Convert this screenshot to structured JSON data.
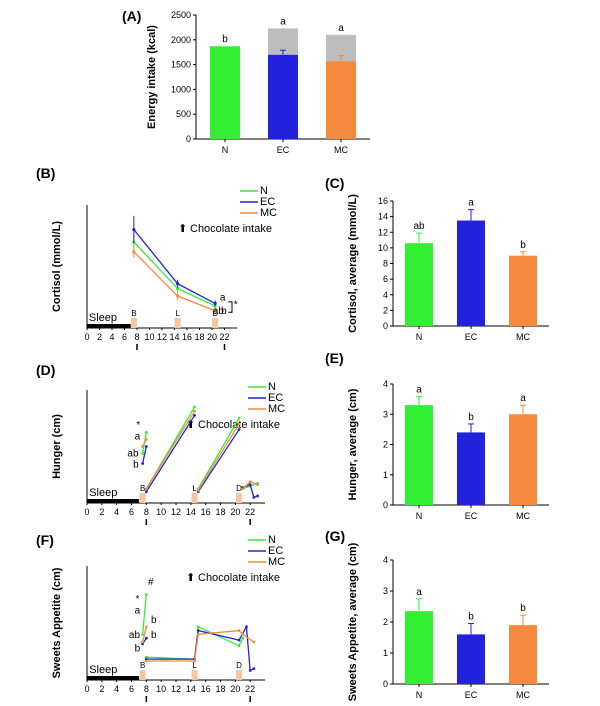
{
  "colors": {
    "N": "#33ee33",
    "EC": "#2222dd",
    "MC": "#f58a3c",
    "gray": "#bdbdbd",
    "meal_box": "#f7c6a0"
  },
  "common": {
    "legend": [
      "N",
      "EC",
      "MC"
    ],
    "intake_note": "Chocolate intake",
    "sleep_label": "Sleep",
    "meal_markers": [
      "B",
      "L",
      "D"
    ],
    "time_ticks": [
      "0",
      "2",
      "4",
      "6",
      "8",
      "10",
      "12",
      "14",
      "16",
      "18",
      "20",
      "22"
    ],
    "time_ticks_b": [
      "0",
      "2",
      "4",
      "6",
      "8",
      "10",
      "12",
      "14",
      "16",
      "18",
      "20",
      "22"
    ]
  },
  "chart_data": [
    {
      "panel": "(A)",
      "type": "bar",
      "stacked": true,
      "ylabel": "Energy intake (kcal)",
      "ylim": [
        0,
        2500
      ],
      "yticks": [
        "0",
        "500",
        "1000",
        "1500",
        "2000",
        "2500"
      ],
      "categories": [
        "N",
        "EC",
        "MC"
      ],
      "series": [
        {
          "values": [
            1870,
            1700,
            1570
          ],
          "errors": [
            0,
            90,
            110
          ]
        },
        {
          "values": [
            0,
            530,
            530
          ]
        }
      ],
      "letters": [
        "b",
        "a",
        "a"
      ]
    },
    {
      "panel": "(B)",
      "type": "line",
      "ylabel": "Cortisol (mmol/L)",
      "ylim": [
        0,
        25
      ],
      "xlim": [
        0,
        24
      ],
      "series": [
        {
          "name": "N",
          "x": [
            7.5,
            14.5,
            20.5
          ],
          "y": [
            17.5,
            8.0,
            4.5
          ],
          "errors": [
            1.5,
            0.8,
            0.8
          ]
        },
        {
          "name": "EC",
          "x": [
            7.5,
            14.5,
            20.5
          ],
          "y": [
            20.0,
            9.0,
            5.0
          ],
          "errors": [
            2.8,
            0.8,
            0.6
          ]
        },
        {
          "name": "MC",
          "x": [
            7.5,
            14.5,
            20.5
          ],
          "y": [
            15.5,
            6.5,
            3.5
          ],
          "errors": [
            1.2,
            0.8,
            0.6
          ]
        }
      ],
      "annotations": [
        "a",
        "b",
        "ab",
        "*"
      ]
    },
    {
      "panel": "(C)",
      "type": "bar",
      "ylabel": "Cortisol, average (mmol/L)",
      "ylim": [
        0,
        16
      ],
      "yticks": [
        "0",
        "2",
        "4",
        "6",
        "8",
        "10",
        "12",
        "14",
        "16"
      ],
      "categories": [
        "N",
        "EC",
        "MC"
      ],
      "values": [
        10.6,
        13.5,
        9.0
      ],
      "errors": [
        1.3,
        1.4,
        0.5
      ],
      "letters": [
        "ab",
        "a",
        "b"
      ]
    },
    {
      "panel": "(D)",
      "type": "line",
      "ylabel": "Hunger (cm)",
      "ylim": [
        0,
        8
      ],
      "xlim": [
        0,
        24
      ],
      "series": [
        {
          "name": "N",
          "segments": [
            [
              [
                7.5,
                3.5
              ],
              [
                8.0,
                5.0
              ]
            ],
            [
              [
                8.0,
                1.0
              ],
              [
                14.5,
                6.8
              ]
            ],
            [
              [
                15.0,
                1.0
              ],
              [
                20.5,
                6.0
              ]
            ],
            [
              [
                21.0,
                1.0
              ],
              [
                22.0,
                1.2
              ],
              [
                23.0,
                1.4
              ]
            ]
          ]
        },
        {
          "name": "EC",
          "segments": [
            [
              [
                7.5,
                2.8
              ],
              [
                8.0,
                4.0
              ]
            ],
            [
              [
                8.0,
                0.8
              ],
              [
                14.5,
                6.2
              ]
            ],
            [
              [
                15.0,
                0.8
              ],
              [
                20.5,
                5.2
              ]
            ],
            [
              [
                21.0,
                1.1
              ],
              [
                22.0,
                1.3
              ],
              [
                22.5,
                0.4
              ],
              [
                23.0,
                0.5
              ]
            ]
          ]
        },
        {
          "name": "MC",
          "segments": [
            [
              [
                7.5,
                4.0
              ],
              [
                8.0,
                4.5
              ]
            ],
            [
              [
                8.0,
                1.0
              ],
              [
                14.5,
                6.5
              ]
            ],
            [
              [
                15.0,
                0.9
              ],
              [
                20.5,
                5.6
              ]
            ],
            [
              [
                21.0,
                1.0
              ],
              [
                22.0,
                1.5
              ],
              [
                23.0,
                1.3
              ]
            ]
          ]
        }
      ],
      "annotations": [
        "*",
        "a",
        "ab",
        "b"
      ]
    },
    {
      "panel": "(E)",
      "type": "bar",
      "ylabel": "Hunger, average (cm)",
      "ylim": [
        0,
        4
      ],
      "yticks": [
        "0",
        "1",
        "2",
        "3",
        "4"
      ],
      "categories": [
        "N",
        "EC",
        "MC"
      ],
      "values": [
        3.3,
        2.4,
        3.0
      ],
      "errors": [
        0.28,
        0.28,
        0.3
      ],
      "letters": [
        "a",
        "b",
        "a"
      ]
    },
    {
      "panel": "(F)",
      "type": "line",
      "ylabel": "Sweets Appetite (cm)",
      "ylim": [
        0,
        6
      ],
      "xlim": [
        0,
        24
      ],
      "series": [
        {
          "name": "N",
          "segments": [
            [
              [
                7.5,
                2.4
              ],
              [
                8.0,
                4.5
              ]
            ],
            [
              [
                8.0,
                1.2
              ],
              [
                14.5,
                1.1
              ],
              [
                15.0,
                2.8
              ],
              [
                20.5,
                1.8
              ],
              [
                21.0,
                2.2
              ]
            ]
          ]
        },
        {
          "name": "EC",
          "segments": [
            [
              [
                7.5,
                1.9
              ],
              [
                8.0,
                2.2
              ]
            ],
            [
              [
                8.0,
                1.1
              ],
              [
                14.5,
                1.1
              ],
              [
                15.0,
                2.6
              ],
              [
                20.5,
                2.1
              ],
              [
                21.5,
                2.8
              ],
              [
                22.0,
                0.5
              ],
              [
                22.5,
                0.6
              ]
            ]
          ]
        },
        {
          "name": "MC",
          "segments": [
            [
              [
                7.5,
                2.0
              ],
              [
                8.0,
                2.8
              ]
            ],
            [
              [
                8.0,
                1.0
              ],
              [
                14.5,
                1.0
              ],
              [
                15.0,
                2.4
              ],
              [
                20.5,
                2.6
              ],
              [
                21.0,
                2.4
              ],
              [
                22.5,
                2.0
              ]
            ]
          ]
        }
      ],
      "annotations": [
        "*",
        "#",
        "a",
        "ab",
        "b",
        "b",
        "b"
      ]
    },
    {
      "panel": "(G)",
      "type": "bar",
      "ylabel": "Sweets Appetite, average (cm)",
      "ylim": [
        0,
        4
      ],
      "yticks": [
        "0",
        "1",
        "2",
        "3",
        "4"
      ],
      "categories": [
        "N",
        "EC",
        "MC"
      ],
      "values": [
        2.35,
        1.6,
        1.9
      ],
      "errors": [
        0.4,
        0.35,
        0.32
      ],
      "letters": [
        "a",
        "b",
        "b"
      ]
    }
  ]
}
